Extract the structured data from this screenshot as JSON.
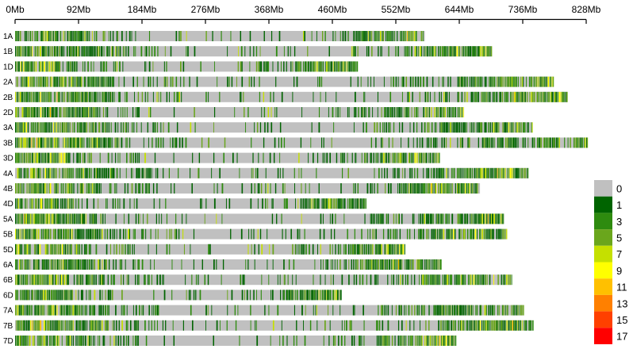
{
  "chart_data": {
    "type": "heatmap",
    "title": "",
    "x_axis": {
      "unit": "Mb",
      "ticks": [
        "0Mb",
        "92Mb",
        "184Mb",
        "276Mb",
        "368Mb",
        "460Mb",
        "552Mb",
        "644Mb",
        "736Mb",
        "828Mb"
      ],
      "tick_values": [
        0,
        92,
        184,
        276,
        368,
        460,
        552,
        644,
        736,
        828
      ],
      "range": [
        0,
        828
      ],
      "position": "top"
    },
    "chromosomes": [
      {
        "name": "1A",
        "length_mb": 594
      },
      {
        "name": "1B",
        "length_mb": 690
      },
      {
        "name": "1D",
        "length_mb": 495
      },
      {
        "name": "2A",
        "length_mb": 780
      },
      {
        "name": "2B",
        "length_mb": 801
      },
      {
        "name": "2D",
        "length_mb": 651
      },
      {
        "name": "3A",
        "length_mb": 750
      },
      {
        "name": "3B",
        "length_mb": 830
      },
      {
        "name": "3D",
        "length_mb": 615
      },
      {
        "name": "4A",
        "length_mb": 744
      },
      {
        "name": "4B",
        "length_mb": 674
      },
      {
        "name": "4D",
        "length_mb": 509
      },
      {
        "name": "5A",
        "length_mb": 709
      },
      {
        "name": "5B",
        "length_mb": 713
      },
      {
        "name": "5D",
        "length_mb": 566
      },
      {
        "name": "6A",
        "length_mb": 618
      },
      {
        "name": "6B",
        "length_mb": 720
      },
      {
        "name": "6D",
        "length_mb": 473
      },
      {
        "name": "7A",
        "length_mb": 737
      },
      {
        "name": "7B",
        "length_mb": 750
      },
      {
        "name": "7D",
        "length_mb": 638
      }
    ],
    "legend": {
      "placement": "right",
      "values": [
        "0",
        "1",
        "3",
        "5",
        "7",
        "9",
        "11",
        "13",
        "15",
        "17"
      ],
      "colors": [
        "#c0c0c0",
        "#006400",
        "#2e8b0f",
        "#6aa61c",
        "#c5e000",
        "#ffff00",
        "#ffc000",
        "#ff8000",
        "#ff4000",
        "#ff0000"
      ]
    },
    "grid": false
  }
}
